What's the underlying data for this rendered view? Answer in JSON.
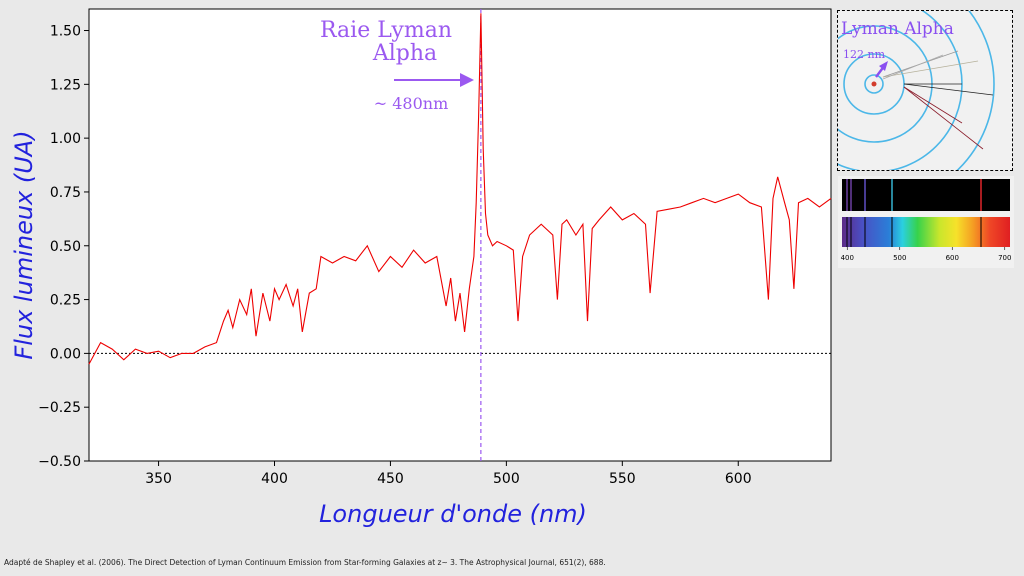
{
  "chart_data": {
    "type": "line",
    "xlabel": "Longueur d'onde (nm)",
    "ylabel": "Flux lumineux (UA)",
    "xlim": [
      320,
      640
    ],
    "ylim": [
      -0.5,
      1.6
    ],
    "x_ticks": [
      350,
      400,
      450,
      500,
      550,
      600
    ],
    "y_ticks": [
      -0.5,
      -0.25,
      0.0,
      0.25,
      0.5,
      0.75,
      1.0,
      1.25,
      1.5
    ],
    "y_tick_labels": [
      "−0.50",
      "−0.25",
      "0.00",
      "0.25",
      "0.50",
      "0.75",
      "1.00",
      "1.25",
      "1.50"
    ],
    "grid": false,
    "zero_line": 0.0,
    "marker_line_x": 489,
    "series": [
      {
        "color": "#ee0000",
        "x": [
          320,
          325,
          330,
          335,
          340,
          345,
          350,
          355,
          360,
          365,
          370,
          375,
          378,
          380,
          382,
          385,
          388,
          390,
          392,
          395,
          398,
          400,
          402,
          405,
          408,
          410,
          412,
          415,
          418,
          420,
          425,
          430,
          435,
          440,
          445,
          450,
          455,
          460,
          465,
          470,
          474,
          476,
          478,
          480,
          482,
          484,
          486,
          487,
          488,
          489,
          490,
          491,
          492,
          494,
          496,
          500,
          503,
          505,
          507,
          510,
          515,
          520,
          522,
          524,
          526,
          530,
          533,
          535,
          537,
          540,
          545,
          550,
          555,
          560,
          562,
          565,
          570,
          575,
          580,
          585,
          590,
          595,
          600,
          605,
          610,
          613,
          615,
          617,
          620,
          622,
          624,
          626,
          630,
          635,
          640
        ],
        "y": [
          -0.05,
          0.05,
          0.02,
          -0.03,
          0.02,
          0.0,
          0.01,
          -0.02,
          0.0,
          0.0,
          0.03,
          0.05,
          0.15,
          0.2,
          0.12,
          0.25,
          0.18,
          0.3,
          0.08,
          0.28,
          0.15,
          0.3,
          0.25,
          0.32,
          0.22,
          0.3,
          0.1,
          0.28,
          0.3,
          0.45,
          0.42,
          0.45,
          0.43,
          0.5,
          0.38,
          0.45,
          0.4,
          0.48,
          0.42,
          0.45,
          0.22,
          0.35,
          0.15,
          0.28,
          0.1,
          0.3,
          0.45,
          0.7,
          1.1,
          1.58,
          0.95,
          0.65,
          0.55,
          0.5,
          0.52,
          0.5,
          0.48,
          0.15,
          0.45,
          0.55,
          0.6,
          0.55,
          0.25,
          0.6,
          0.62,
          0.55,
          0.6,
          0.15,
          0.58,
          0.62,
          0.68,
          0.62,
          0.65,
          0.6,
          0.28,
          0.66,
          0.67,
          0.68,
          0.7,
          0.72,
          0.7,
          0.72,
          0.74,
          0.7,
          0.68,
          0.25,
          0.72,
          0.82,
          0.7,
          0.62,
          0.3,
          0.7,
          0.72,
          0.68,
          0.72
        ]
      }
    ]
  },
  "annotation": {
    "line1": "Raie Lyman",
    "line2": "Alpha",
    "wavelength": "~ 480nm"
  },
  "lyman_panel": {
    "title": "Lyman Alpha",
    "wavelength": "122 nm"
  },
  "spectrum_panel": {
    "ticks": [
      "400",
      "500",
      "600",
      "700"
    ]
  },
  "citation": "Adapté de Shapley et al. (2006). The Direct Detection of Lyman Continuum Emission from Star-forming Galaxies at z~ 3. The Astrophysical Journal, 651(2), 688."
}
